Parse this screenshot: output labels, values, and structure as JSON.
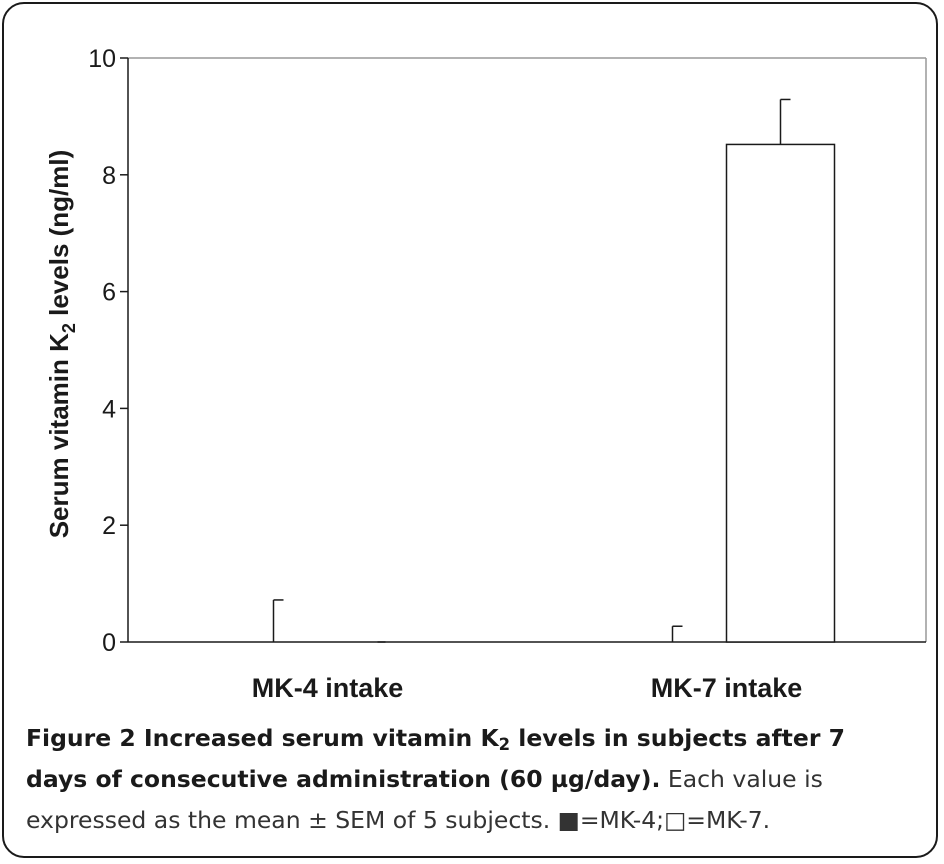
{
  "chart_data": {
    "type": "bar",
    "ylabel": "Serum vitamin K",
    "ylabel_sub": "2",
    "ylabel_tail": " levels  (ng/ml)",
    "ylim": [
      0,
      10
    ],
    "yticks": [
      "0",
      "2",
      "4",
      "6",
      "8",
      "10"
    ],
    "ytick_values": [
      0,
      2,
      4,
      6,
      8,
      10
    ],
    "categories": [
      "MK-4 intake",
      "MK-7 intake"
    ],
    "series": [
      {
        "name": "MK-4",
        "fill": "#000000",
        "values": [
          0,
          0
        ],
        "errors": [
          0.72,
          0.27
        ]
      },
      {
        "name": "MK-7",
        "fill": "#ffffff",
        "values": [
          0,
          8.52
        ],
        "errors": [
          0,
          0.77
        ]
      }
    ],
    "grid": false,
    "legend": "none"
  },
  "caption": {
    "title_pre": "Figure 2 Increased serum vitamin K",
    "title_sub": "2",
    "title_post": " levels in subjects after 7 days of consecutive administration (60 µg/day).",
    "body": " Each value is expressed as the mean ± SEM of 5 subjects. ■=MK-4;□=MK-7."
  },
  "colors": {
    "axis": "#1a1a1a",
    "frame_right_top": "#999999"
  }
}
